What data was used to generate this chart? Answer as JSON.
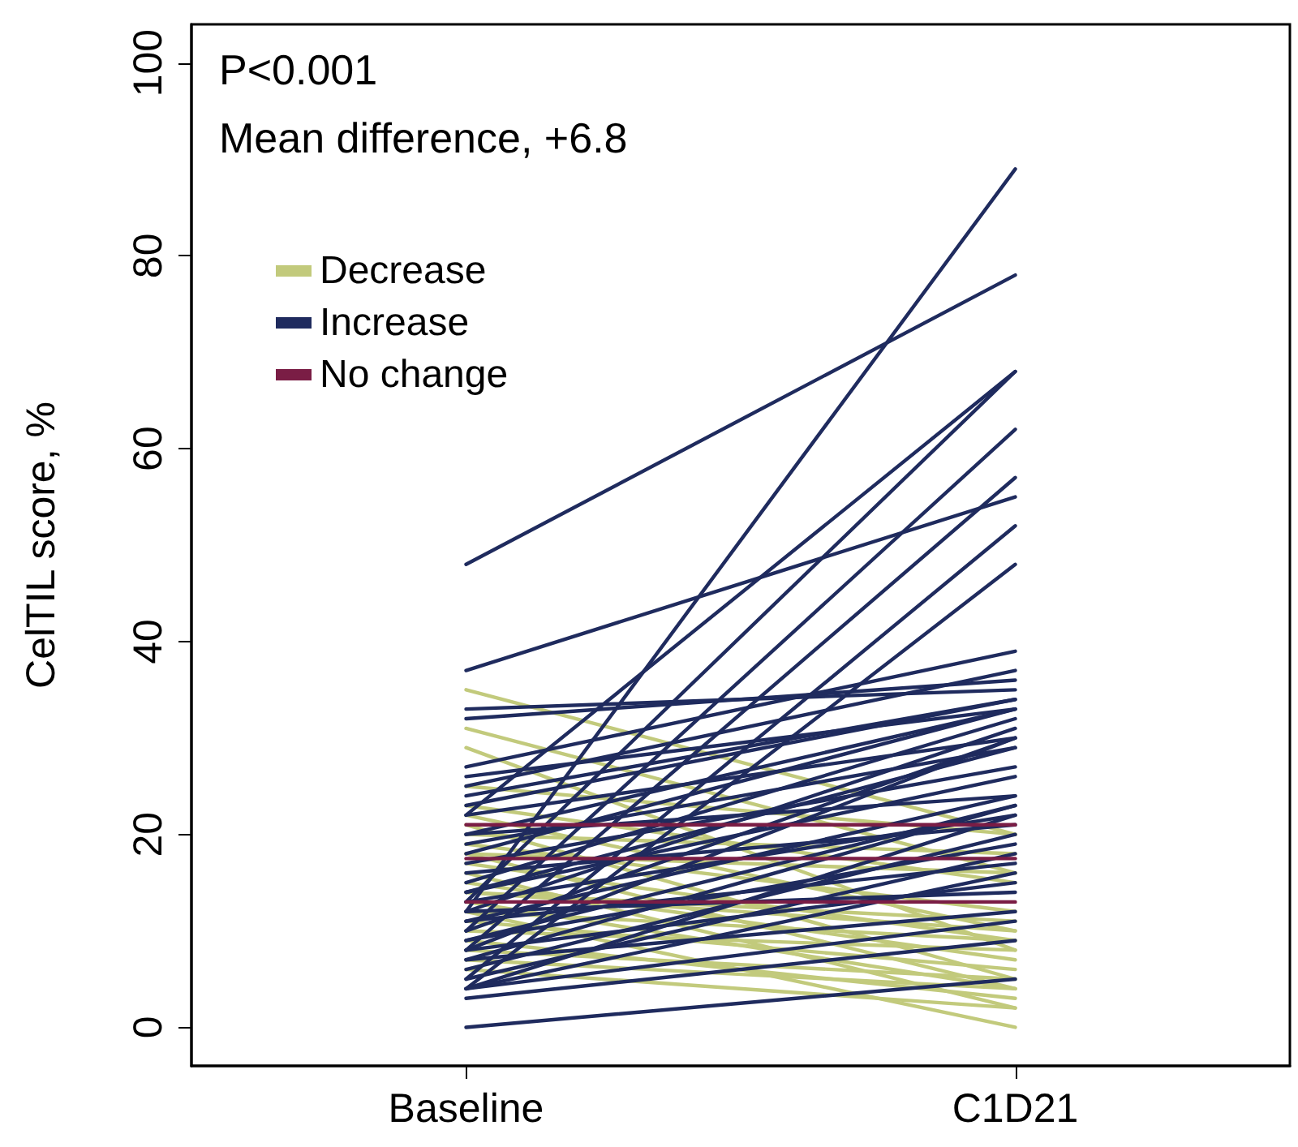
{
  "chart_data": {
    "type": "line",
    "ylabel": "CelTIL score, %",
    "annotations": [
      "P<0.001",
      "Mean difference, +6.8"
    ],
    "categories": [
      "Baseline",
      "C1D21"
    ],
    "ylim": [
      -4,
      104
    ],
    "yticks": [
      0,
      20,
      40,
      60,
      80,
      100
    ],
    "grid": false,
    "legend": "top left",
    "marker": "none",
    "line_style": "solid",
    "series": [
      {
        "name": "Decrease",
        "color": "#c2ca7c",
        "values": [
          35,
          20
        ]
      },
      {
        "color": "#c2ca7c",
        "values": [
          31,
          16
        ]
      },
      {
        "color": "#c2ca7c",
        "values": [
          29,
          8
        ]
      },
      {
        "color": "#c2ca7c",
        "values": [
          22,
          10
        ]
      },
      {
        "color": "#c2ca7c",
        "values": [
          21,
          5
        ]
      },
      {
        "color": "#c2ca7c",
        "values": [
          19,
          12
        ]
      },
      {
        "color": "#c2ca7c",
        "values": [
          18,
          4
        ]
      },
      {
        "color": "#c2ca7c",
        "values": [
          17,
          9
        ]
      },
      {
        "color": "#c2ca7c",
        "values": [
          16,
          2
        ]
      },
      {
        "color": "#c2ca7c",
        "values": [
          15,
          7
        ]
      },
      {
        "color": "#c2ca7c",
        "values": [
          14,
          11
        ]
      },
      {
        "color": "#c2ca7c",
        "values": [
          13,
          4
        ]
      },
      {
        "color": "#c2ca7c",
        "values": [
          12,
          0
        ]
      },
      {
        "color": "#c2ca7c",
        "values": [
          11,
          6
        ]
      },
      {
        "color": "#c2ca7c",
        "values": [
          10,
          8
        ]
      },
      {
        "color": "#c2ca7c",
        "values": [
          9,
          3
        ]
      },
      {
        "color": "#c2ca7c",
        "values": [
          8,
          5
        ]
      },
      {
        "color": "#c2ca7c",
        "values": [
          7,
          4
        ]
      },
      {
        "color": "#c2ca7c",
        "values": [
          6,
          2
        ]
      },
      {
        "color": "#c2ca7c",
        "values": [
          23,
          15
        ]
      },
      {
        "color": "#c2ca7c",
        "values": [
          20,
          18
        ]
      },
      {
        "color": "#c2ca7c",
        "values": [
          25,
          20
        ]
      },
      {
        "color": "#c2ca7c",
        "values": [
          14,
          10
        ]
      },
      {
        "color": "#c2ca7c",
        "values": [
          12,
          9
        ]
      },
      {
        "color": "#c2ca7c",
        "values": [
          18,
          16
        ]
      },
      {
        "name": "Increase",
        "color": "#1f2b5e",
        "values": [
          48,
          78
        ]
      },
      {
        "color": "#1f2b5e",
        "values": [
          37,
          55
        ]
      },
      {
        "color": "#1f2b5e",
        "values": [
          12,
          89
        ]
      },
      {
        "color": "#1f2b5e",
        "values": [
          22,
          68
        ]
      },
      {
        "color": "#1f2b5e",
        "values": [
          13,
          68
        ]
      },
      {
        "color": "#1f2b5e",
        "values": [
          10,
          62
        ]
      },
      {
        "color": "#1f2b5e",
        "values": [
          8,
          57
        ]
      },
      {
        "color": "#1f2b5e",
        "values": [
          5,
          52
        ]
      },
      {
        "color": "#1f2b5e",
        "values": [
          4,
          48
        ]
      },
      {
        "color": "#1f2b5e",
        "values": [
          27,
          39
        ]
      },
      {
        "color": "#1f2b5e",
        "values": [
          32,
          36
        ]
      },
      {
        "color": "#1f2b5e",
        "values": [
          33,
          35
        ]
      },
      {
        "color": "#1f2b5e",
        "values": [
          25,
          37
        ]
      },
      {
        "color": "#1f2b5e",
        "values": [
          23,
          34
        ]
      },
      {
        "color": "#1f2b5e",
        "values": [
          20,
          33
        ]
      },
      {
        "color": "#1f2b5e",
        "values": [
          18,
          33
        ]
      },
      {
        "color": "#1f2b5e",
        "values": [
          15,
          32
        ]
      },
      {
        "color": "#1f2b5e",
        "values": [
          12,
          31
        ]
      },
      {
        "color": "#1f2b5e",
        "values": [
          10,
          30
        ]
      },
      {
        "color": "#1f2b5e",
        "values": [
          8,
          30
        ]
      },
      {
        "color": "#1f2b5e",
        "values": [
          22,
          30
        ]
      },
      {
        "color": "#1f2b5e",
        "values": [
          19,
          29
        ]
      },
      {
        "color": "#1f2b5e",
        "values": [
          17,
          27
        ]
      },
      {
        "color": "#1f2b5e",
        "values": [
          14,
          26
        ]
      },
      {
        "color": "#1f2b5e",
        "values": [
          11,
          24
        ]
      },
      {
        "color": "#1f2b5e",
        "values": [
          9,
          23
        ]
      },
      {
        "color": "#1f2b5e",
        "values": [
          7,
          23
        ]
      },
      {
        "color": "#1f2b5e",
        "values": [
          4,
          22
        ]
      },
      {
        "color": "#1f2b5e",
        "values": [
          13,
          22
        ]
      },
      {
        "color": "#1f2b5e",
        "values": [
          16,
          21
        ]
      },
      {
        "color": "#1f2b5e",
        "values": [
          6,
          20
        ]
      },
      {
        "color": "#1f2b5e",
        "values": [
          9,
          19
        ]
      },
      {
        "color": "#1f2b5e",
        "values": [
          11,
          17
        ]
      },
      {
        "color": "#1f2b5e",
        "values": [
          4,
          16
        ]
      },
      {
        "color": "#1f2b5e",
        "values": [
          8,
          15
        ]
      },
      {
        "color": "#1f2b5e",
        "values": [
          12,
          14
        ]
      },
      {
        "color": "#1f2b5e",
        "values": [
          0,
          5
        ]
      },
      {
        "color": "#1f2b5e",
        "values": [
          4,
          11
        ]
      },
      {
        "color": "#1f2b5e",
        "values": [
          20,
          24
        ]
      },
      {
        "color": "#1f2b5e",
        "values": [
          24,
          34
        ]
      },
      {
        "color": "#1f2b5e",
        "values": [
          26,
          33
        ]
      },
      {
        "color": "#1f2b5e",
        "values": [
          14,
          29
        ]
      },
      {
        "color": "#1f2b5e",
        "values": [
          5,
          18
        ]
      },
      {
        "color": "#1f2b5e",
        "values": [
          7,
          12
        ]
      },
      {
        "color": "#1f2b5e",
        "values": [
          3,
          9
        ]
      },
      {
        "name": "No change",
        "color": "#7a1d45",
        "values": [
          21,
          21
        ]
      },
      {
        "color": "#7a1d45",
        "values": [
          17.5,
          17.5
        ]
      },
      {
        "color": "#7a1d45",
        "values": [
          13,
          13
        ]
      }
    ]
  }
}
